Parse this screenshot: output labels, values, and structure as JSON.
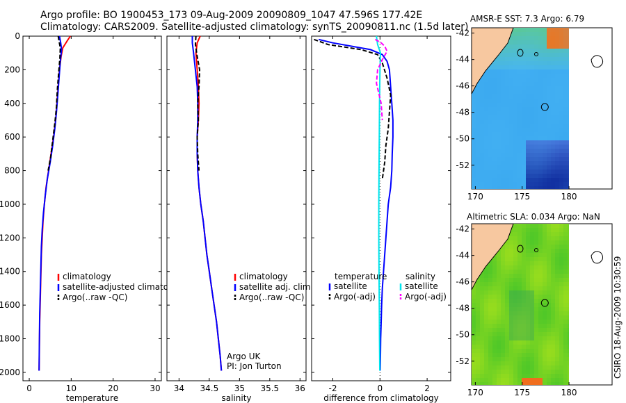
{
  "header": {
    "line1": "Argo profile: BO 1900453_173 09-Aug-2009 20090809_1047 47.596S 177.42E",
    "line2": "Climatology: CARS2009. Satellite-adjusted climatology: synTS_20090811.nc (1.5d later)"
  },
  "credit": "CSIRO 18-Aug-2009 10:30:59",
  "colors": {
    "climatology": "#ff0000",
    "satellite": "#0000ff",
    "argo": "#000000",
    "sal_satellite": "#00e5ee",
    "sal_argo": "#ff00ff",
    "land": "#f7c8a0"
  },
  "chart_data": [
    {
      "type": "line",
      "xlabel": "temperature",
      "ylabel": "",
      "xlim": [
        -1.5,
        31.5
      ],
      "ylim": [
        2050,
        0
      ],
      "x_ticks": [
        "0",
        "10",
        "20",
        "30"
      ],
      "y_ticks": [
        "0",
        "200",
        "400",
        "600",
        "800",
        "1000",
        "1200",
        "1400",
        "1600",
        "1800",
        "2000"
      ],
      "legend": [
        "climatology",
        "satellite-adjusted climatology",
        "Argo(..raw -QC)"
      ],
      "legend_position": "lower-middle",
      "series": [
        {
          "name": "climatology",
          "style": "solid",
          "color": "#ff0000",
          "points": [
            [
              9.8,
              0
            ],
            [
              9.0,
              30
            ],
            [
              8.0,
              70
            ],
            [
              7.6,
              120
            ],
            [
              7.2,
              200
            ],
            [
              6.9,
              300
            ],
            [
              6.6,
              400
            ],
            [
              6.3,
              500
            ],
            [
              5.8,
              600
            ],
            [
              5.2,
              700
            ],
            [
              4.6,
              800
            ],
            [
              4.0,
              900
            ],
            [
              3.6,
              1000
            ],
            [
              3.3,
              1100
            ],
            [
              3.1,
              1200
            ],
            [
              2.9,
              1300
            ],
            [
              2.8,
              1400
            ],
            [
              2.7,
              1500
            ],
            [
              2.6,
              1600
            ],
            [
              2.5,
              1700
            ],
            [
              2.45,
              1800
            ],
            [
              2.4,
              1900
            ],
            [
              2.35,
              1990
            ]
          ]
        },
        {
          "name": "satellite-adjusted climatology",
          "style": "solid",
          "color": "#0000ff",
          "points": [
            [
              7.2,
              0
            ],
            [
              7.5,
              40
            ],
            [
              7.7,
              80
            ],
            [
              7.4,
              150
            ],
            [
              7.1,
              250
            ],
            [
              6.8,
              350
            ],
            [
              6.5,
              450
            ],
            [
              6.1,
              550
            ],
            [
              5.6,
              650
            ],
            [
              5.0,
              750
            ],
            [
              4.3,
              850
            ],
            [
              3.8,
              950
            ],
            [
              3.4,
              1050
            ],
            [
              3.1,
              1150
            ],
            [
              2.9,
              1250
            ],
            [
              2.8,
              1350
            ],
            [
              2.7,
              1450
            ],
            [
              2.6,
              1550
            ],
            [
              2.5,
              1650
            ],
            [
              2.45,
              1750
            ],
            [
              2.4,
              1850
            ],
            [
              2.35,
              1990
            ]
          ]
        },
        {
          "name": "Argo(..raw -QC)",
          "style": "dashed",
          "color": "#000000",
          "points": [
            [
              6.9,
              0
            ],
            [
              7.1,
              30
            ],
            [
              7.4,
              70
            ],
            [
              7.3,
              130
            ],
            [
              7.0,
              220
            ],
            [
              6.7,
              320
            ],
            [
              6.5,
              420
            ],
            [
              6.1,
              520
            ],
            [
              5.6,
              620
            ],
            [
              5.1,
              720
            ],
            [
              4.5,
              800
            ]
          ]
        }
      ]
    },
    {
      "type": "line",
      "xlabel": "salinity",
      "ylabel": "",
      "xlim": [
        33.8,
        36.1
      ],
      "ylim": [
        2050,
        0
      ],
      "x_ticks": [
        "34",
        "34.5",
        "35",
        "35.5",
        "36"
      ],
      "legend": [
        "climatology",
        "satellite adj. clim.",
        "Argo(..raw -QC)"
      ],
      "legend_position": "lower-right",
      "annotations": [
        "Argo UK",
        "PI: Jon Turton"
      ],
      "series": [
        {
          "name": "climatology",
          "style": "solid",
          "color": "#ff0000",
          "points": [
            [
              34.35,
              0
            ],
            [
              34.3,
              40
            ],
            [
              34.28,
              100
            ],
            [
              34.3,
              200
            ],
            [
              34.32,
              300
            ],
            [
              34.33,
              400
            ],
            [
              34.32,
              500
            ],
            [
              34.3,
              600
            ],
            [
              34.3,
              700
            ],
            [
              34.31,
              800
            ],
            [
              34.33,
              900
            ],
            [
              34.36,
              1000
            ],
            [
              34.4,
              1100
            ],
            [
              34.43,
              1200
            ],
            [
              34.46,
              1300
            ],
            [
              34.5,
              1400
            ],
            [
              34.54,
              1500
            ],
            [
              34.58,
              1600
            ],
            [
              34.62,
              1700
            ],
            [
              34.65,
              1800
            ],
            [
              34.68,
              1900
            ],
            [
              34.7,
              1990
            ]
          ]
        },
        {
          "name": "satellite adj. clim.",
          "style": "solid",
          "color": "#0000ff",
          "points": [
            [
              34.22,
              0
            ],
            [
              34.22,
              40
            ],
            [
              34.24,
              100
            ],
            [
              34.27,
              200
            ],
            [
              34.3,
              300
            ],
            [
              34.31,
              400
            ],
            [
              34.31,
              500
            ],
            [
              34.3,
              600
            ],
            [
              34.3,
              700
            ],
            [
              34.31,
              800
            ],
            [
              34.33,
              900
            ],
            [
              34.36,
              1000
            ],
            [
              34.4,
              1100
            ],
            [
              34.43,
              1200
            ],
            [
              34.46,
              1300
            ],
            [
              34.5,
              1400
            ],
            [
              34.54,
              1500
            ],
            [
              34.58,
              1600
            ],
            [
              34.62,
              1700
            ],
            [
              34.65,
              1800
            ],
            [
              34.68,
              1900
            ],
            [
              34.7,
              1990
            ]
          ]
        },
        {
          "name": "Argo(..raw -QC)",
          "style": "dashed",
          "color": "#000000",
          "points": [
            [
              34.28,
              0
            ],
            [
              34.27,
              50
            ],
            [
              34.3,
              120
            ],
            [
              34.34,
              200
            ],
            [
              34.33,
              300
            ],
            [
              34.31,
              400
            ],
            [
              34.32,
              500
            ],
            [
              34.3,
              600
            ],
            [
              34.31,
              700
            ],
            [
              34.33,
              800
            ]
          ]
        }
      ]
    },
    {
      "type": "line",
      "xlabel": "difference from climatology",
      "ylabel": "",
      "xlim": [
        -2.9,
        3.0
      ],
      "ylim": [
        2050,
        0
      ],
      "x_ticks": [
        "-2",
        "0",
        "2"
      ],
      "legend_groups": [
        {
          "title": "temperature",
          "entries": [
            "satellite",
            "Argo(-adj)"
          ]
        },
        {
          "title": "salinity",
          "entries": [
            "satellite",
            "Argo(-adj)"
          ]
        }
      ],
      "legend_position": "lower-middle",
      "series": [
        {
          "name": "satellite",
          "group": "temperature",
          "style": "solid",
          "color": "#0000ff",
          "points": [
            [
              -2.6,
              20
            ],
            [
              -2.0,
              40
            ],
            [
              -0.4,
              80
            ],
            [
              0.1,
              110
            ],
            [
              0.3,
              150
            ],
            [
              0.4,
              200
            ],
            [
              0.45,
              300
            ],
            [
              0.5,
              400
            ],
            [
              0.55,
              500
            ],
            [
              0.55,
              600
            ],
            [
              0.52,
              700
            ],
            [
              0.5,
              800
            ],
            [
              0.45,
              900
            ],
            [
              0.35,
              1000
            ],
            [
              0.3,
              1100
            ],
            [
              0.25,
              1200
            ],
            [
              0.2,
              1300
            ],
            [
              0.15,
              1400
            ],
            [
              0.1,
              1500
            ],
            [
              0.07,
              1600
            ],
            [
              0.05,
              1700
            ],
            [
              0.03,
              1800
            ],
            [
              0.02,
              1900
            ],
            [
              0.01,
              1990
            ]
          ]
        },
        {
          "name": "Argo(-adj)",
          "group": "temperature",
          "style": "dashed",
          "color": "#000000",
          "points": [
            [
              -2.8,
              20
            ],
            [
              -2.2,
              50
            ],
            [
              -0.8,
              80
            ],
            [
              -0.1,
              110
            ],
            [
              0.1,
              160
            ],
            [
              0.3,
              250
            ],
            [
              0.45,
              350
            ],
            [
              0.4,
              450
            ],
            [
              0.35,
              550
            ],
            [
              0.25,
              650
            ],
            [
              0.2,
              750
            ],
            [
              0.1,
              850
            ]
          ]
        },
        {
          "name": "satellite",
          "group": "salinity",
          "style": "solid",
          "color": "#00e5ee",
          "points": [
            [
              -0.15,
              0
            ],
            [
              -0.1,
              50
            ],
            [
              0.02,
              100
            ],
            [
              0.0,
              200
            ],
            [
              -0.02,
              400
            ],
            [
              -0.03,
              600
            ],
            [
              -0.04,
              800
            ],
            [
              -0.05,
              1000
            ],
            [
              -0.05,
              1200
            ],
            [
              -0.04,
              1400
            ],
            [
              -0.03,
              1600
            ],
            [
              -0.02,
              1800
            ],
            [
              -0.01,
              1990
            ]
          ]
        },
        {
          "name": "Argo(-adj)",
          "group": "salinity",
          "style": "dashed",
          "color": "#ff00ff",
          "points": [
            [
              -0.2,
              20
            ],
            [
              0.05,
              40
            ],
            [
              0.2,
              60
            ],
            [
              0.3,
              90
            ],
            [
              0.1,
              140
            ],
            [
              -0.1,
              200
            ],
            [
              -0.15,
              280
            ],
            [
              -0.05,
              340
            ],
            [
              0.05,
              400
            ],
            [
              0.1,
              500
            ]
          ]
        }
      ]
    },
    {
      "type": "heatmap",
      "title": "AMSR-E SST: 7.3 Argo: 6.79",
      "x_ticks": [
        "170",
        "175",
        "180"
      ],
      "y_ticks": [
        "-42",
        "-44",
        "-46",
        "-48",
        "-50",
        "-52"
      ],
      "xlim": [
        169.6,
        184.6
      ],
      "ylim": [
        -53.8,
        -41.6
      ],
      "marker": {
        "lon": 177.42,
        "lat": -47.596
      }
    },
    {
      "type": "heatmap",
      "title": "Altimetric SLA: 0.034 Argo: NaN",
      "x_ticks": [
        "170",
        "175",
        "180"
      ],
      "y_ticks": [
        "-42",
        "-44",
        "-46",
        "-48",
        "-50",
        "-52"
      ],
      "xlim": [
        169.6,
        184.6
      ],
      "ylim": [
        -53.8,
        -41.6
      ],
      "marker": {
        "lon": 177.42,
        "lat": -47.596
      }
    }
  ]
}
